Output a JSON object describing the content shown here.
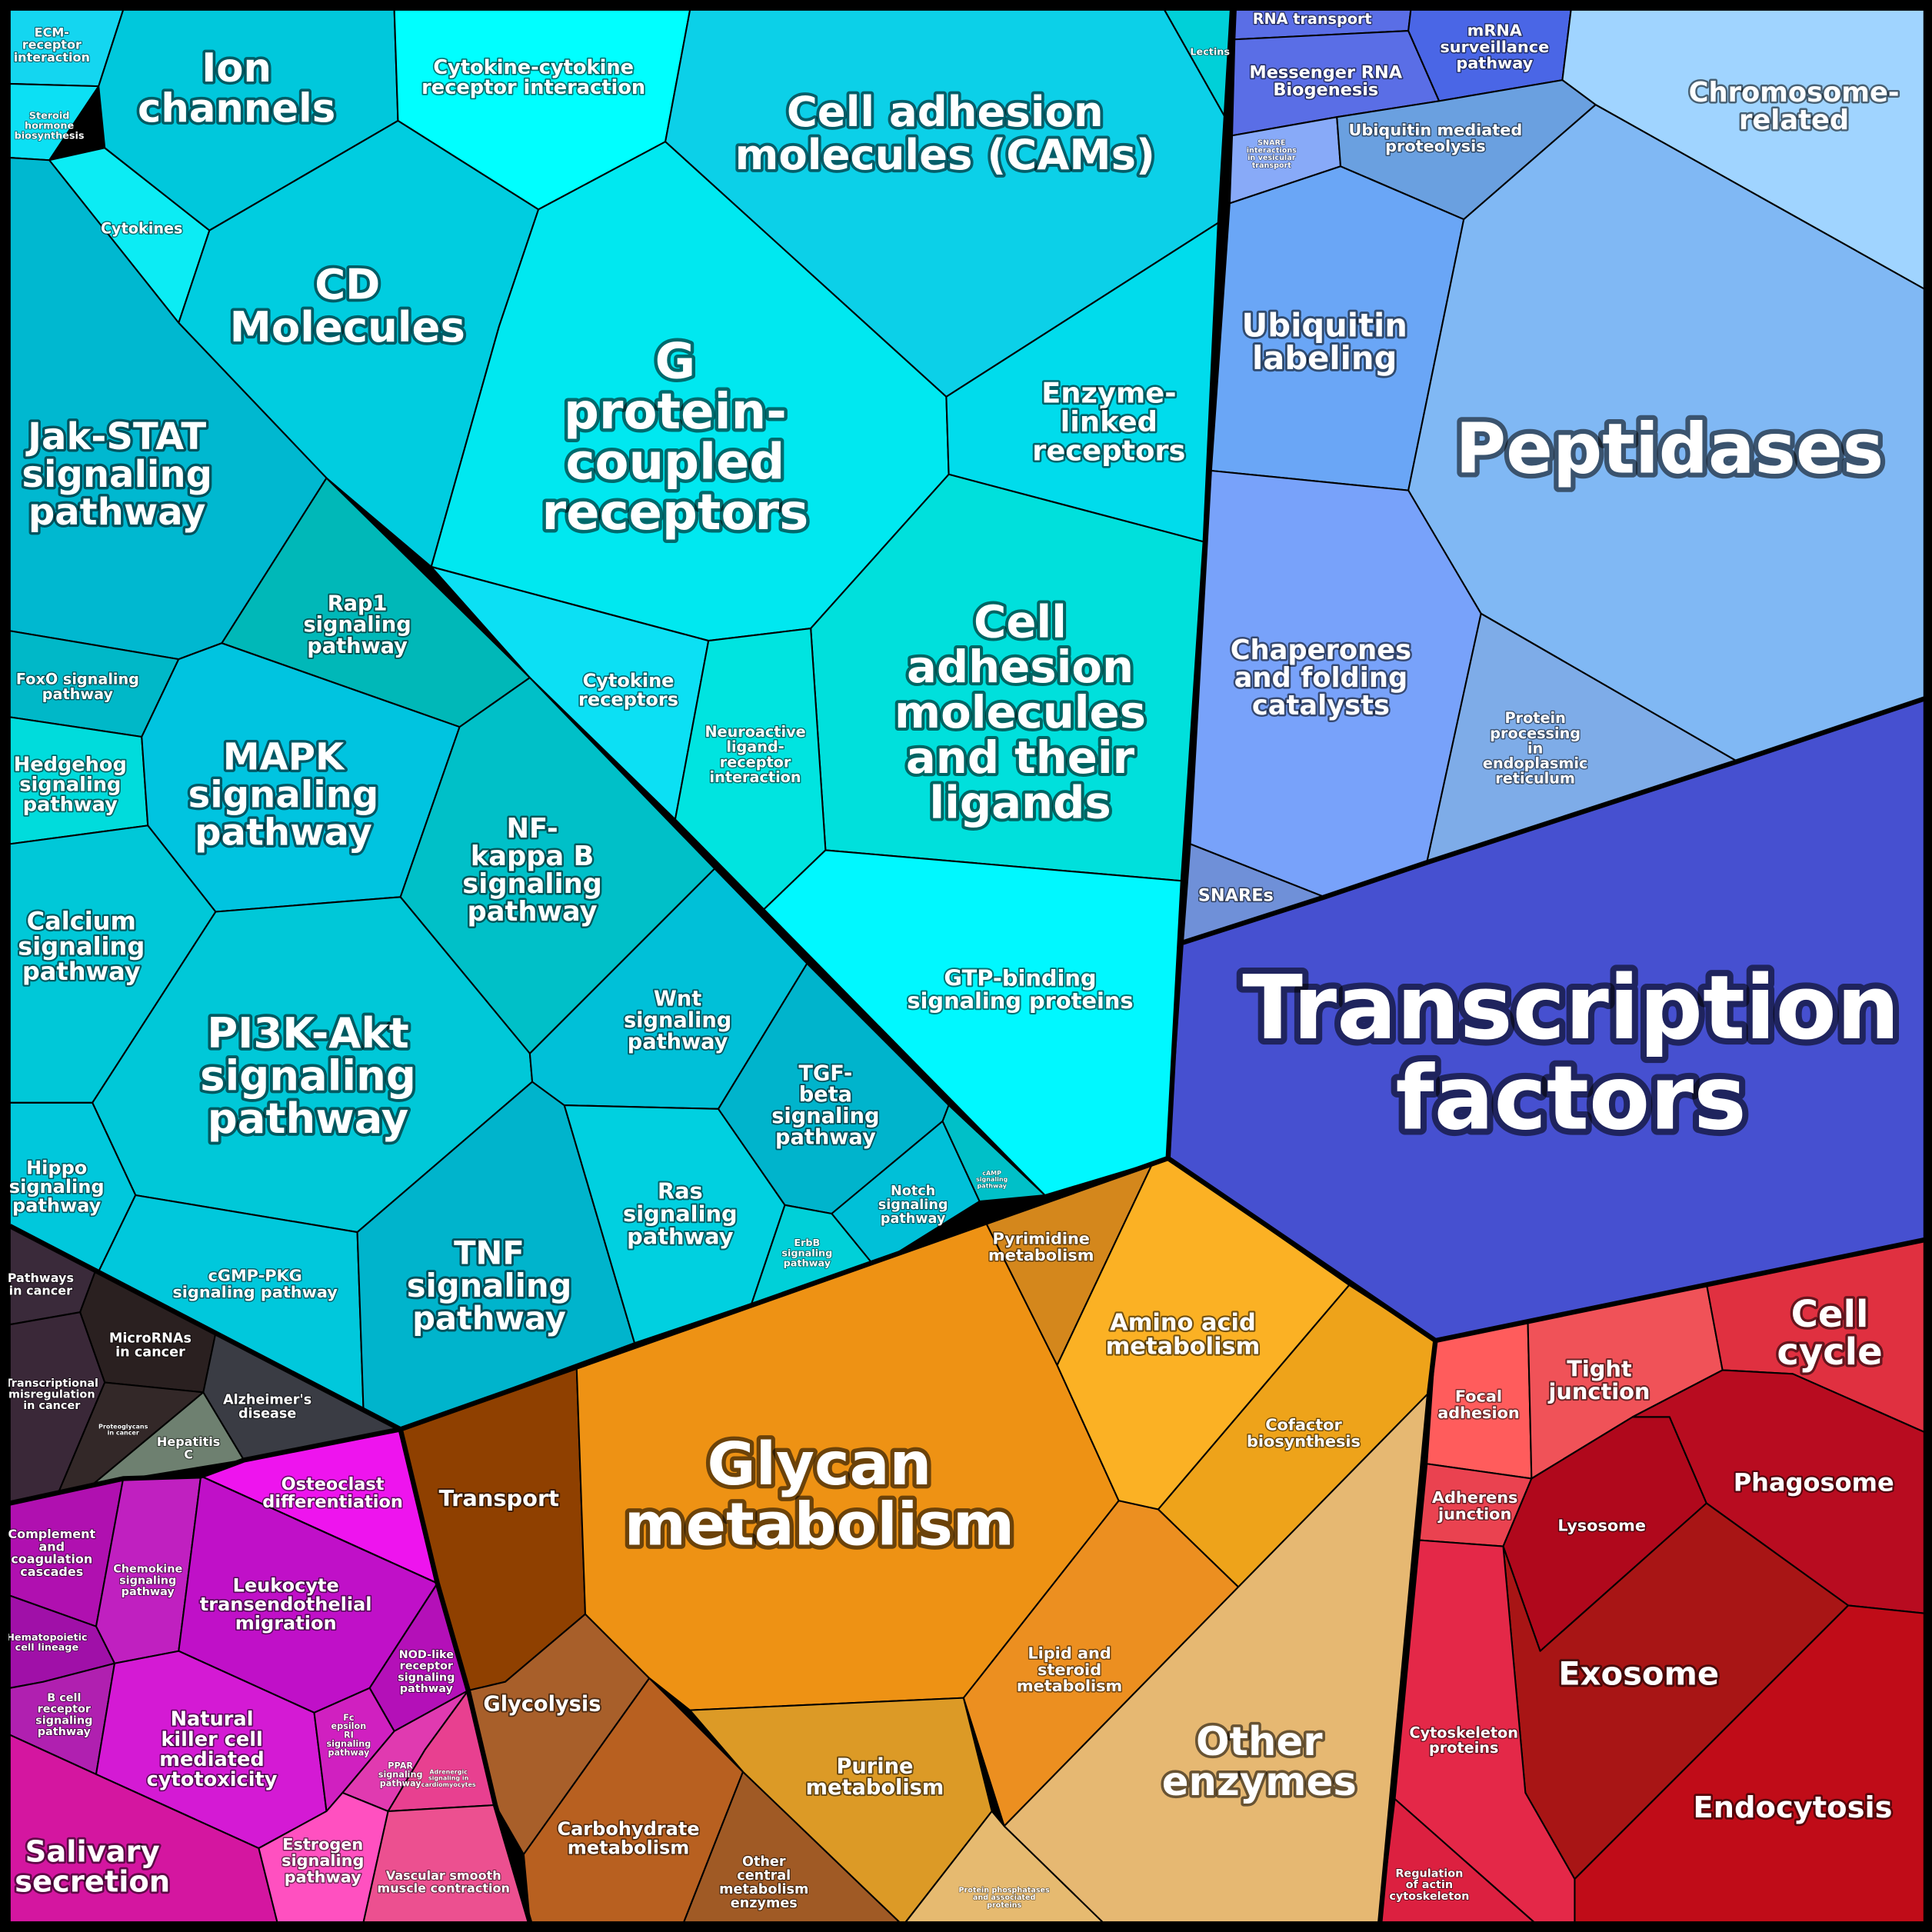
{
  "cells": [
    {
      "label": [
        "ECM-",
        "receptor",
        "interaction"
      ]
    },
    {
      "label": [
        "Steroid",
        "hormone",
        "biosynthesis"
      ]
    },
    {
      "label": [
        "Cytokines"
      ]
    },
    {
      "label": [
        "Ion",
        "channels"
      ]
    },
    {
      "label": [
        "Cytokine-cytokine",
        "receptor interaction"
      ]
    },
    {
      "label": [
        "Lectins"
      ]
    },
    {
      "label": [
        "Cell adhesion",
        "molecules (CAMs)"
      ]
    },
    {
      "label": [
        "CD",
        "Molecules"
      ]
    },
    {
      "label": [
        "G",
        "protein-",
        "coupled",
        "receptors"
      ]
    },
    {
      "label": [
        "Enzyme-",
        "linked",
        "receptors"
      ]
    },
    {
      "label": [
        "Cell",
        "adhesion",
        "molecules",
        "and their",
        "ligands"
      ]
    },
    {
      "label": [
        "Cytokine",
        "receptors"
      ]
    },
    {
      "label": [
        "Neuroactive",
        "ligand-",
        "receptor",
        "interaction"
      ]
    },
    {
      "label": [
        "GTP-binding",
        "signaling proteins"
      ]
    },
    {
      "label": [
        "Jak-STAT",
        "signaling",
        "pathway"
      ]
    },
    {
      "label": [
        "Rap1",
        "signaling",
        "pathway"
      ]
    },
    {
      "label": [
        "FoxO signaling",
        "pathway"
      ]
    },
    {
      "label": [
        "Hedgehog",
        "signaling",
        "pathway"
      ]
    },
    {
      "label": [
        "MAPK",
        "signaling",
        "pathway"
      ]
    },
    {
      "label": [
        "NF-",
        "kappa B",
        "signaling",
        "pathway"
      ]
    },
    {
      "label": [
        "Calcium",
        "signaling",
        "pathway"
      ]
    },
    {
      "label": [
        "PI3K-Akt",
        "signaling",
        "pathway"
      ]
    },
    {
      "label": [
        "Hippo",
        "signaling",
        "pathway"
      ]
    },
    {
      "label": [
        "cGMP-PKG",
        "signaling pathway"
      ]
    },
    {
      "label": [
        "TNF",
        "signaling",
        "pathway"
      ]
    },
    {
      "label": [
        "Wnt",
        "signaling",
        "pathway"
      ]
    },
    {
      "label": [
        "Ras",
        "signaling",
        "pathway"
      ]
    },
    {
      "label": [
        "TGF-",
        "beta",
        "signaling",
        "pathway"
      ]
    },
    {
      "label": [
        "Notch",
        "signaling",
        "pathway"
      ]
    },
    {
      "label": [
        "ErbB",
        "signaling",
        "pathway"
      ]
    },
    {
      "label": [
        "cAMP",
        "signaling",
        "pathway"
      ]
    },
    {
      "label": [
        "Pathways",
        "in cancer"
      ]
    },
    {
      "label": [
        "MicroRNAs",
        "in cancer"
      ]
    },
    {
      "label": [
        "Transcriptional",
        "misregulation",
        "in cancer"
      ]
    },
    {
      "label": [
        "Proteoglycans",
        "in cancer"
      ]
    },
    {
      "label": [
        "Hepatitis",
        "C"
      ]
    },
    {
      "label": [
        "Alzheimer's",
        "disease"
      ]
    },
    {
      "label": [
        "Osteoclast",
        "differentiation"
      ]
    },
    {
      "label": [
        "Complement",
        "and",
        "coagulation",
        "cascades"
      ]
    },
    {
      "label": [
        "Chemokine",
        "signaling",
        "pathway"
      ]
    },
    {
      "label": [
        "Leukocyte",
        "transendothelial",
        "migration"
      ]
    },
    {
      "label": [
        "Hematopoietic",
        "cell lineage"
      ]
    },
    {
      "label": [
        "NOD-like",
        "receptor",
        "signaling",
        "pathway"
      ]
    },
    {
      "label": [
        "B cell",
        "receptor",
        "signaling",
        "pathway"
      ]
    },
    {
      "label": [
        "Natural",
        "killer cell",
        "mediated",
        "cytotoxicity"
      ]
    },
    {
      "label": [
        "Fc",
        "epsilon",
        "RI",
        "signaling",
        "pathway"
      ]
    },
    {
      "label": [
        "PPAR",
        "signaling",
        "pathway"
      ]
    },
    {
      "label": [
        "Adrenergic",
        "signaling in",
        "cardiomyocytes"
      ]
    },
    {
      "label": [
        "Salivary",
        "secretion"
      ]
    },
    {
      "label": [
        "Estrogen",
        "signaling",
        "pathway"
      ]
    },
    {
      "label": [
        "Vascular smooth",
        "muscle contraction"
      ]
    },
    {
      "label": [
        "Transport"
      ]
    },
    {
      "label": [
        "Glycolysis"
      ]
    },
    {
      "label": [
        "Carbohydrate",
        "metabolism"
      ]
    },
    {
      "label": [
        "Other",
        "central",
        "metabolism",
        "enzymes"
      ]
    },
    {
      "label": [
        "Glycan",
        "metabolism"
      ]
    },
    {
      "label": [
        "Pyrimidine",
        "metabolism"
      ]
    },
    {
      "label": [
        "Amino acid",
        "metabolism"
      ]
    },
    {
      "label": [
        "Cofactor",
        "biosynthesis"
      ]
    },
    {
      "label": [
        "Lipid and",
        "steroid",
        "metabolism"
      ]
    },
    {
      "label": [
        "Purine",
        "metabolism"
      ]
    },
    {
      "label": [
        "Protein phosphatases",
        "and associated",
        "proteins"
      ]
    },
    {
      "label": [
        "Other",
        "enzymes"
      ]
    },
    {
      "label": [
        "Focal",
        "adhesion"
      ]
    },
    {
      "label": [
        "Tight",
        "junction"
      ]
    },
    {
      "label": [
        "Cell",
        "cycle"
      ]
    },
    {
      "label": [
        "Adherens",
        "junction"
      ]
    },
    {
      "label": [
        "Lysosome"
      ]
    },
    {
      "label": [
        "Phagosome"
      ]
    },
    {
      "label": [
        "Exosome"
      ]
    },
    {
      "label": [
        "Endocytosis"
      ]
    },
    {
      "label": [
        "Cytoskeleton",
        "proteins"
      ]
    },
    {
      "label": [
        "Regulation",
        "of actin",
        "cytoskeleton"
      ]
    },
    {
      "label": [
        "RNA transport"
      ]
    },
    {
      "label": [
        "Messenger RNA",
        "Biogenesis"
      ]
    },
    {
      "label": [
        "mRNA",
        "surveillance",
        "pathway"
      ]
    },
    {
      "label": [
        "Chromosome-",
        "related"
      ]
    },
    {
      "label": [
        "SNARE",
        "interactions",
        "in vesicular",
        "transport"
      ]
    },
    {
      "label": [
        "Ubiquitin mediated",
        "proteolysis"
      ]
    },
    {
      "label": [
        "Ubiquitin",
        "labeling"
      ]
    },
    {
      "label": [
        "Peptidases"
      ]
    },
    {
      "label": [
        "Chaperones",
        "and folding",
        "catalysts"
      ]
    },
    {
      "label": [
        "Protein",
        "processing",
        "in",
        "endoplasmic",
        "reticulum"
      ]
    },
    {
      "label": [
        "SNAREs"
      ]
    },
    {
      "label": [
        "Transcription",
        "factors"
      ]
    }
  ]
}
